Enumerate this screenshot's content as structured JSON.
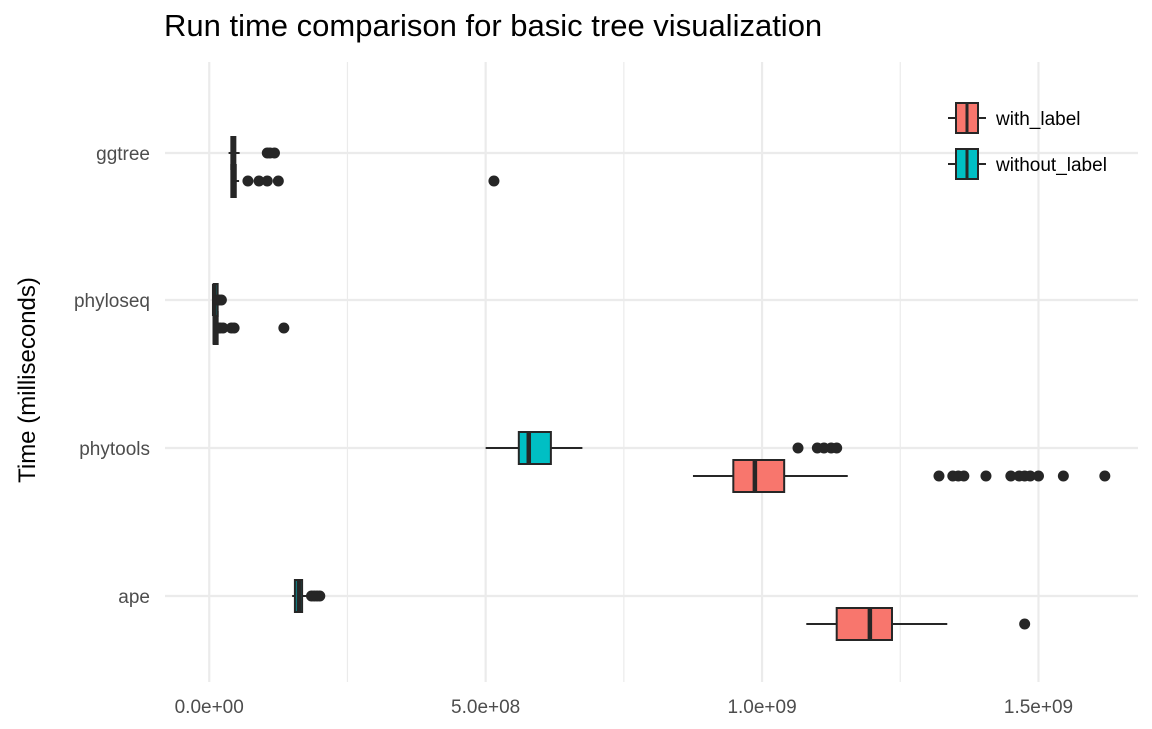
{
  "chart_data": {
    "type": "boxplot",
    "orientation": "horizontal",
    "title": "Run time comparison for basic tree visualization",
    "ylabel": "Time (milliseconds)",
    "xlabel": "",
    "categories": [
      "ggtree",
      "phyloseq",
      "phytools",
      "ape"
    ],
    "x_ticks": [
      0,
      500000000,
      1000000000,
      1500000000
    ],
    "x_tick_labels": [
      "0.0e+00",
      "5.0e+08",
      "1.0e+09",
      "1.5e+09"
    ],
    "xlim": [
      -80000000,
      1680000000
    ],
    "grid": true,
    "legend": {
      "position": "top-right",
      "entries": [
        "with_label",
        "without_label"
      ]
    },
    "series": [
      {
        "name": "with_label",
        "color": "#F8766D",
        "boxes": [
          {
            "category": "ggtree",
            "whisker_low": 40000000,
            "q1": 40000000,
            "median": 44000000,
            "q3": 48000000,
            "whisker_high": 54000000,
            "outliers": [
              70000000,
              90000000,
              105000000,
              125000000,
              515000000
            ]
          },
          {
            "category": "phyloseq",
            "whisker_low": 8000000,
            "q1": 8000000,
            "median": 10000000,
            "q3": 12000000,
            "whisker_high": 14000000,
            "outliers": [
              17000000,
              20000000,
              25000000,
              40000000,
              45000000,
              135000000
            ]
          },
          {
            "category": "phytools",
            "whisker_low": 875000000,
            "q1": 948000000,
            "median": 987000000,
            "q3": 1040000000,
            "whisker_high": 1155000000,
            "outliers": [
              1320000000,
              1345000000,
              1355000000,
              1365000000,
              1405000000,
              1450000000,
              1465000000,
              1475000000,
              1485000000,
              1500000000,
              1545000000,
              1620000000
            ]
          },
          {
            "category": "ape",
            "whisker_low": 1080000000,
            "q1": 1135000000,
            "median": 1195000000,
            "q3": 1235000000,
            "whisker_high": 1335000000,
            "outliers": [
              1475000000
            ]
          }
        ]
      },
      {
        "name": "without_label",
        "color": "#00BFC4",
        "boxes": [
          {
            "category": "ggtree",
            "whisker_low": 35000000,
            "q1": 40000000,
            "median": 43000000,
            "q3": 47000000,
            "whisker_high": 55000000,
            "outliers": [
              105000000,
              110000000,
              118000000
            ]
          },
          {
            "category": "phyloseq",
            "whisker_low": 6000000,
            "q1": 8000000,
            "median": 9000000,
            "q3": 10000000,
            "whisker_high": 12000000,
            "outliers": [
              15000000,
              18000000,
              22000000
            ]
          },
          {
            "category": "phytools",
            "whisker_low": 500000000,
            "q1": 560000000,
            "median": 578000000,
            "q3": 618000000,
            "whisker_high": 675000000,
            "outliers": [
              1065000000,
              1100000000,
              1112000000,
              1125000000,
              1135000000
            ]
          },
          {
            "category": "ape",
            "whisker_low": 150000000,
            "q1": 155000000,
            "median": 162000000,
            "q3": 168000000,
            "whisker_high": 180000000,
            "outliers": [
              185000000,
              190000000,
              195000000,
              200000000
            ]
          }
        ]
      }
    ]
  }
}
